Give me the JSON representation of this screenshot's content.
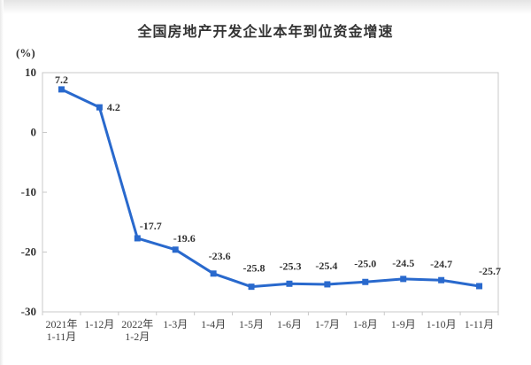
{
  "page": {
    "title": "全国房地产开发企业本年到位资金增速",
    "y_unit": "(%)"
  },
  "chart_data": {
    "type": "line",
    "title": "全国房地产开发企业本年到位资金增速",
    "ylabel": "(%)",
    "xlabel": "",
    "categories": [
      "2021年\n1-11月",
      "1-12月",
      "2022年\n1-2月",
      "1-3月",
      "1-4月",
      "1-5月",
      "1-6月",
      "1-7月",
      "1-8月",
      "1-9月",
      "1-10月",
      "1-11月"
    ],
    "values": [
      7.2,
      4.2,
      -17.7,
      -19.6,
      -23.6,
      -25.8,
      -25.3,
      -25.4,
      -25.0,
      -24.5,
      -24.7,
      -25.7
    ],
    "point_labels": [
      "7.2",
      "4.2",
      "-17.7",
      "-19.6",
      "-23.6",
      "-25.8",
      "-25.3",
      "-25.4",
      "-25.0",
      "-24.5",
      "-24.7",
      "-25.7"
    ],
    "ylim": [
      -30,
      10
    ],
    "yticks": [
      10,
      0,
      -10,
      -20,
      -30
    ],
    "grid": false,
    "legend": false,
    "line_color": "#2969cd",
    "marker": "square",
    "axis_color": "#c8c8c8",
    "text_color": "#333333"
  }
}
